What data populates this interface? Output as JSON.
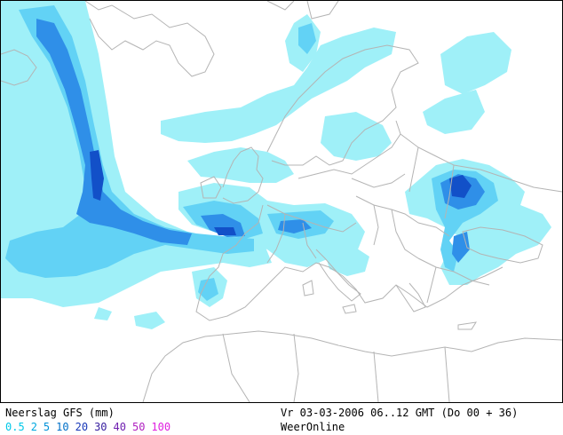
{
  "footer": {
    "title": "Neerslag GFS (mm)",
    "valid_time": "Vr 03-03-2006 06..12 GMT (Do 00 + 36)",
    "credit": "WeerOnline"
  },
  "legend": {
    "levels": [
      {
        "label": "0.5",
        "color": "#00c8e8"
      },
      {
        "label": "2",
        "color": "#00a8e0"
      },
      {
        "label": "5",
        "color": "#0090d8"
      },
      {
        "label": "10",
        "color": "#0070c8"
      },
      {
        "label": "20",
        "color": "#1838b8"
      },
      {
        "label": "30",
        "color": "#3820a0"
      },
      {
        "label": "40",
        "color": "#7020b0"
      },
      {
        "label": "50",
        "color": "#b020c0"
      },
      {
        "label": "100",
        "color": "#e020e0"
      }
    ]
  },
  "colors": {
    "precip_light": "#9ff0f8",
    "precip_medium": "#62d2f5",
    "precip_heavy": "#2f8fe8",
    "precip_very_heavy": "#1250c8",
    "coastline": "#b4b4b4"
  }
}
